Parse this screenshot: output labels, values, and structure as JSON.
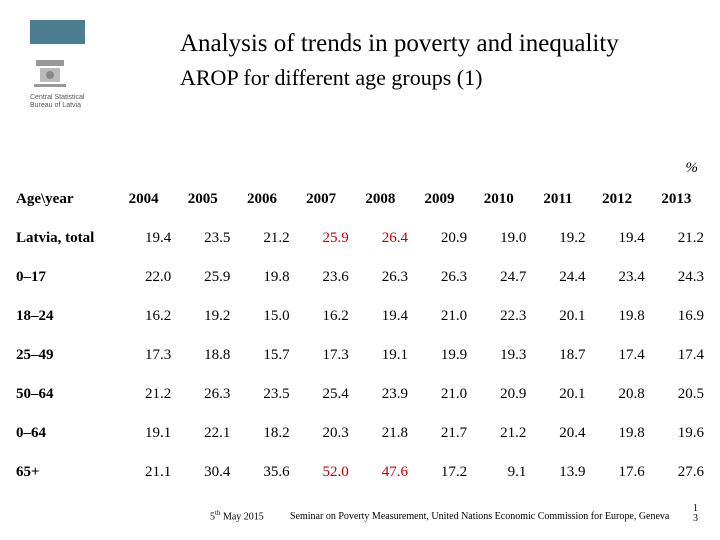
{
  "brand": {
    "bar_color": "#4b7d8f",
    "caption_l1": "Central Statistical",
    "caption_l2": "Bureau of Latvia"
  },
  "title": "Analysis of trends in poverty and inequality",
  "subtitle": "AROP for different age groups (1)",
  "percent": "%",
  "table": {
    "header_label": "Age\\year",
    "years": [
      "2004",
      "2005",
      "2006",
      "2007",
      "2008",
      "2009",
      "2010",
      "2011",
      "2012",
      "2013"
    ],
    "rows": [
      {
        "label": "Latvia, total",
        "cells": [
          {
            "v": "19.4"
          },
          {
            "v": "23.5"
          },
          {
            "v": "21.2"
          },
          {
            "v": "25.9",
            "hl": true
          },
          {
            "v": "26.4",
            "hl": true
          },
          {
            "v": "20.9"
          },
          {
            "v": "19.0"
          },
          {
            "v": "19.2"
          },
          {
            "v": "19.4"
          },
          {
            "v": "21.2"
          }
        ]
      },
      {
        "label": "0–17",
        "cells": [
          {
            "v": "22.0"
          },
          {
            "v": "25.9"
          },
          {
            "v": "19.8"
          },
          {
            "v": "23.6"
          },
          {
            "v": "26.3"
          },
          {
            "v": "26.3"
          },
          {
            "v": "24.7"
          },
          {
            "v": "24.4"
          },
          {
            "v": "23.4"
          },
          {
            "v": "24.3"
          }
        ]
      },
      {
        "label": "18–24",
        "cells": [
          {
            "v": "16.2"
          },
          {
            "v": "19.2"
          },
          {
            "v": "15.0"
          },
          {
            "v": "16.2"
          },
          {
            "v": "19.4"
          },
          {
            "v": "21.0"
          },
          {
            "v": "22.3"
          },
          {
            "v": "20.1"
          },
          {
            "v": "19.8"
          },
          {
            "v": "16.9"
          }
        ]
      },
      {
        "label": "25–49",
        "cells": [
          {
            "v": "17.3"
          },
          {
            "v": "18.8"
          },
          {
            "v": "15.7"
          },
          {
            "v": "17.3"
          },
          {
            "v": "19.1"
          },
          {
            "v": "19.9"
          },
          {
            "v": "19.3"
          },
          {
            "v": "18.7"
          },
          {
            "v": "17.4"
          },
          {
            "v": "17.4"
          }
        ]
      },
      {
        "label": "50–64",
        "cells": [
          {
            "v": "21.2"
          },
          {
            "v": "26.3"
          },
          {
            "v": "23.5"
          },
          {
            "v": "25.4"
          },
          {
            "v": "23.9"
          },
          {
            "v": "21.0"
          },
          {
            "v": "20.9"
          },
          {
            "v": "20.1"
          },
          {
            "v": "20.8"
          },
          {
            "v": "20.5"
          }
        ]
      },
      {
        "label": "0–64",
        "cells": [
          {
            "v": "19.1"
          },
          {
            "v": "22.1"
          },
          {
            "v": "18.2"
          },
          {
            "v": "20.3"
          },
          {
            "v": "21.8"
          },
          {
            "v": "21.7"
          },
          {
            "v": "21.2"
          },
          {
            "v": "20.4"
          },
          {
            "v": "19.8"
          },
          {
            "v": "19.6"
          }
        ]
      },
      {
        "label": "65+",
        "cells": [
          {
            "v": "21.1"
          },
          {
            "v": "30.4"
          },
          {
            "v": "35.6"
          },
          {
            "v": "52.0",
            "hl": true
          },
          {
            "v": "47.6",
            "hl": true
          },
          {
            "v": "17.2"
          },
          {
            "v": "9.1"
          },
          {
            "v": "13.9"
          },
          {
            "v": "17.6"
          },
          {
            "v": "27.6"
          }
        ]
      }
    ],
    "highlight_color": "#c00000",
    "header_fontweight": "bold",
    "cell_fontsize": 15
  },
  "footer": {
    "date_prefix": "5",
    "date_sup": "th",
    "date_rest": " May 2015",
    "seminar": "Seminar on Poverty Measurement, United Nations Economic Commission for Europe, Geneva",
    "page_top": "1",
    "page_bottom": "3"
  }
}
